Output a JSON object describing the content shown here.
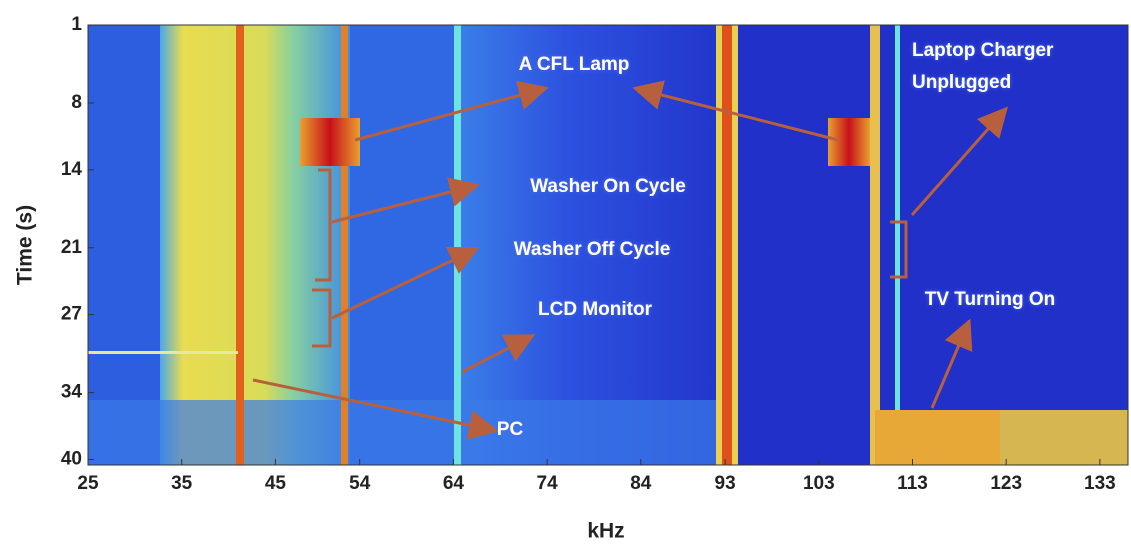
{
  "chart_data": {
    "type": "spectrogram",
    "x_label": "kHz",
    "y_label": "Time (s)",
    "xlim": [
      25,
      136
    ],
    "xticks": [
      25,
      35,
      45,
      54,
      64,
      74,
      84,
      93,
      103,
      113,
      123,
      133
    ],
    "ylim": [
      1,
      40.5
    ],
    "yticks": [
      1,
      8,
      14,
      21,
      27,
      34,
      40
    ],
    "y_inverted": true,
    "annotations": [
      "A CFL Lamp",
      "Laptop Charger",
      "Unplugged",
      "Washer On Cycle",
      "Washer Off Cycle",
      "LCD Monitor",
      "TV Turning On",
      "PC"
    ]
  }
}
